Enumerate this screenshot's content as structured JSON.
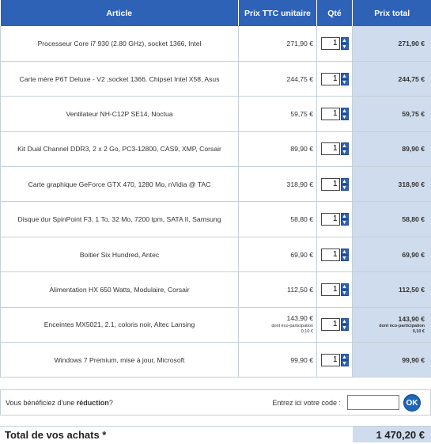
{
  "header": {
    "article": "Article",
    "unit_price": "Prix TTC unitaire",
    "qty": "Qté",
    "total": "Prix total"
  },
  "items": [
    {
      "article": "Processeur Core i7 930 (2.80 GHz), socket 1366, Intel",
      "unit_price": "271,90 €",
      "qty": "1",
      "total": "271,90 €"
    },
    {
      "article": "Carte mère P6T Deluxe - V2 ,socket 1366. Chipset Intel X58, Asus",
      "unit_price": "244,75 €",
      "qty": "1",
      "total": "244,75 €"
    },
    {
      "article": "Ventilateur NH-C12P SE14, Noctua",
      "unit_price": "59,75 €",
      "qty": "1",
      "total": "59,75 €"
    },
    {
      "article": "Kit Dual Channel DDR3, 2 x 2 Go, PC3-12800, CAS9, XMP, Corsair",
      "unit_price": "89,90 €",
      "qty": "1",
      "total": "89,90 €"
    },
    {
      "article": "Carte graphique GeForce GTX 470, 1280 Mo, nVidia @ TAC",
      "unit_price": "318,90 €",
      "qty": "1",
      "total": "318,90 €"
    },
    {
      "article": "Disque dur SpinPoint F3, 1 To, 32 Mo, 7200 tpm, SATA II, Samsung",
      "unit_price": "58,80 €",
      "qty": "1",
      "total": "58,80 €"
    },
    {
      "article": "Boitier Six Hundred, Antec",
      "unit_price": "69,90 €",
      "qty": "1",
      "total": "69,90 €"
    },
    {
      "article": "Alimentation HX 650 Watts, Modulaire, Corsair",
      "unit_price": "112,50 €",
      "qty": "1",
      "total": "112,50 €"
    },
    {
      "article": "Enceintes MX5021, 2.1, coloris noir, Altec Lansing",
      "unit_price": "143,90 €",
      "eco_label": "dont éco-participation",
      "eco_value": "0,10 €",
      "qty": "1",
      "total": "143,90 €",
      "total_eco_label": "dont éco-participation",
      "total_eco_value": "0,10 €"
    },
    {
      "article": "Windows 7 Premium, mise à jour, Microsoft",
      "unit_price": "99,90 €",
      "qty": "1",
      "total": "99,90 €"
    }
  ],
  "promo": {
    "text_before": "Vous bénéficiez d'une ",
    "text_bold": "réduction",
    "text_after": "?",
    "code_label": "Entrez ici votre code :",
    "code_value": "",
    "ok_label": "OK"
  },
  "summary": {
    "label": "Total de vos achats *",
    "value": "1 470,20 €"
  },
  "colors": {
    "header_bg": "#2e62b7",
    "total_col_bg": "#cfdcee",
    "ok_button": "#1f66b8"
  }
}
